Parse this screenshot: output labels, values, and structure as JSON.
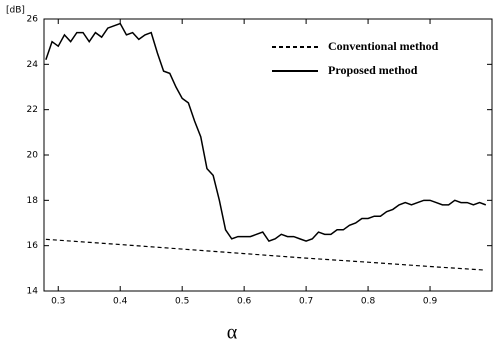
{
  "chart_data": {
    "type": "line",
    "y_unit_label": "[dB]",
    "x_label": "α",
    "xlim": [
      0.277,
      1.0
    ],
    "ylim": [
      14,
      26
    ],
    "xticks": [
      0.3,
      0.4,
      0.5,
      0.6,
      0.7,
      0.8,
      0.9
    ],
    "yticks": [
      14,
      16,
      18,
      20,
      22,
      24,
      26
    ],
    "legend": "upper right",
    "series": [
      {
        "name": "Conventional method",
        "color": "#000000",
        "style": "dashed",
        "x": [
          0.28,
          0.4,
          0.5,
          0.6,
          0.7,
          0.8,
          0.9,
          0.99
        ],
        "values": [
          16.28,
          16.05,
          15.85,
          15.65,
          15.45,
          15.27,
          15.08,
          14.92
        ]
      },
      {
        "name": "Proposed method",
        "color": "#000000",
        "style": "solid",
        "x": [
          0.28,
          0.29,
          0.3,
          0.31,
          0.32,
          0.33,
          0.34,
          0.35,
          0.36,
          0.37,
          0.38,
          0.39,
          0.4,
          0.41,
          0.42,
          0.43,
          0.44,
          0.45,
          0.46,
          0.47,
          0.48,
          0.49,
          0.5,
          0.51,
          0.52,
          0.53,
          0.54,
          0.55,
          0.56,
          0.57,
          0.58,
          0.59,
          0.6,
          0.61,
          0.62,
          0.63,
          0.64,
          0.65,
          0.66,
          0.67,
          0.68,
          0.69,
          0.7,
          0.71,
          0.72,
          0.73,
          0.74,
          0.75,
          0.76,
          0.77,
          0.78,
          0.79,
          0.8,
          0.81,
          0.82,
          0.83,
          0.84,
          0.85,
          0.86,
          0.87,
          0.88,
          0.89,
          0.9,
          0.91,
          0.92,
          0.93,
          0.94,
          0.95,
          0.96,
          0.97,
          0.98,
          0.99
        ],
        "values": [
          24.2,
          25.0,
          24.8,
          25.3,
          25.0,
          25.4,
          25.4,
          25.0,
          25.4,
          25.2,
          25.6,
          25.7,
          25.8,
          25.3,
          25.4,
          25.1,
          25.3,
          25.4,
          24.5,
          23.7,
          23.6,
          23.0,
          22.5,
          22.3,
          21.5,
          20.8,
          19.4,
          19.1,
          18.0,
          16.7,
          16.3,
          16.4,
          16.4,
          16.4,
          16.5,
          16.6,
          16.2,
          16.3,
          16.5,
          16.4,
          16.4,
          16.3,
          16.2,
          16.3,
          16.6,
          16.5,
          16.5,
          16.7,
          16.7,
          16.9,
          17.0,
          17.2,
          17.2,
          17.3,
          17.3,
          17.5,
          17.6,
          17.8,
          17.9,
          17.8,
          17.9,
          18.0,
          18.0,
          17.9,
          17.8,
          17.8,
          18.0,
          17.9,
          17.9,
          17.8,
          17.9,
          17.8
        ]
      }
    ]
  }
}
